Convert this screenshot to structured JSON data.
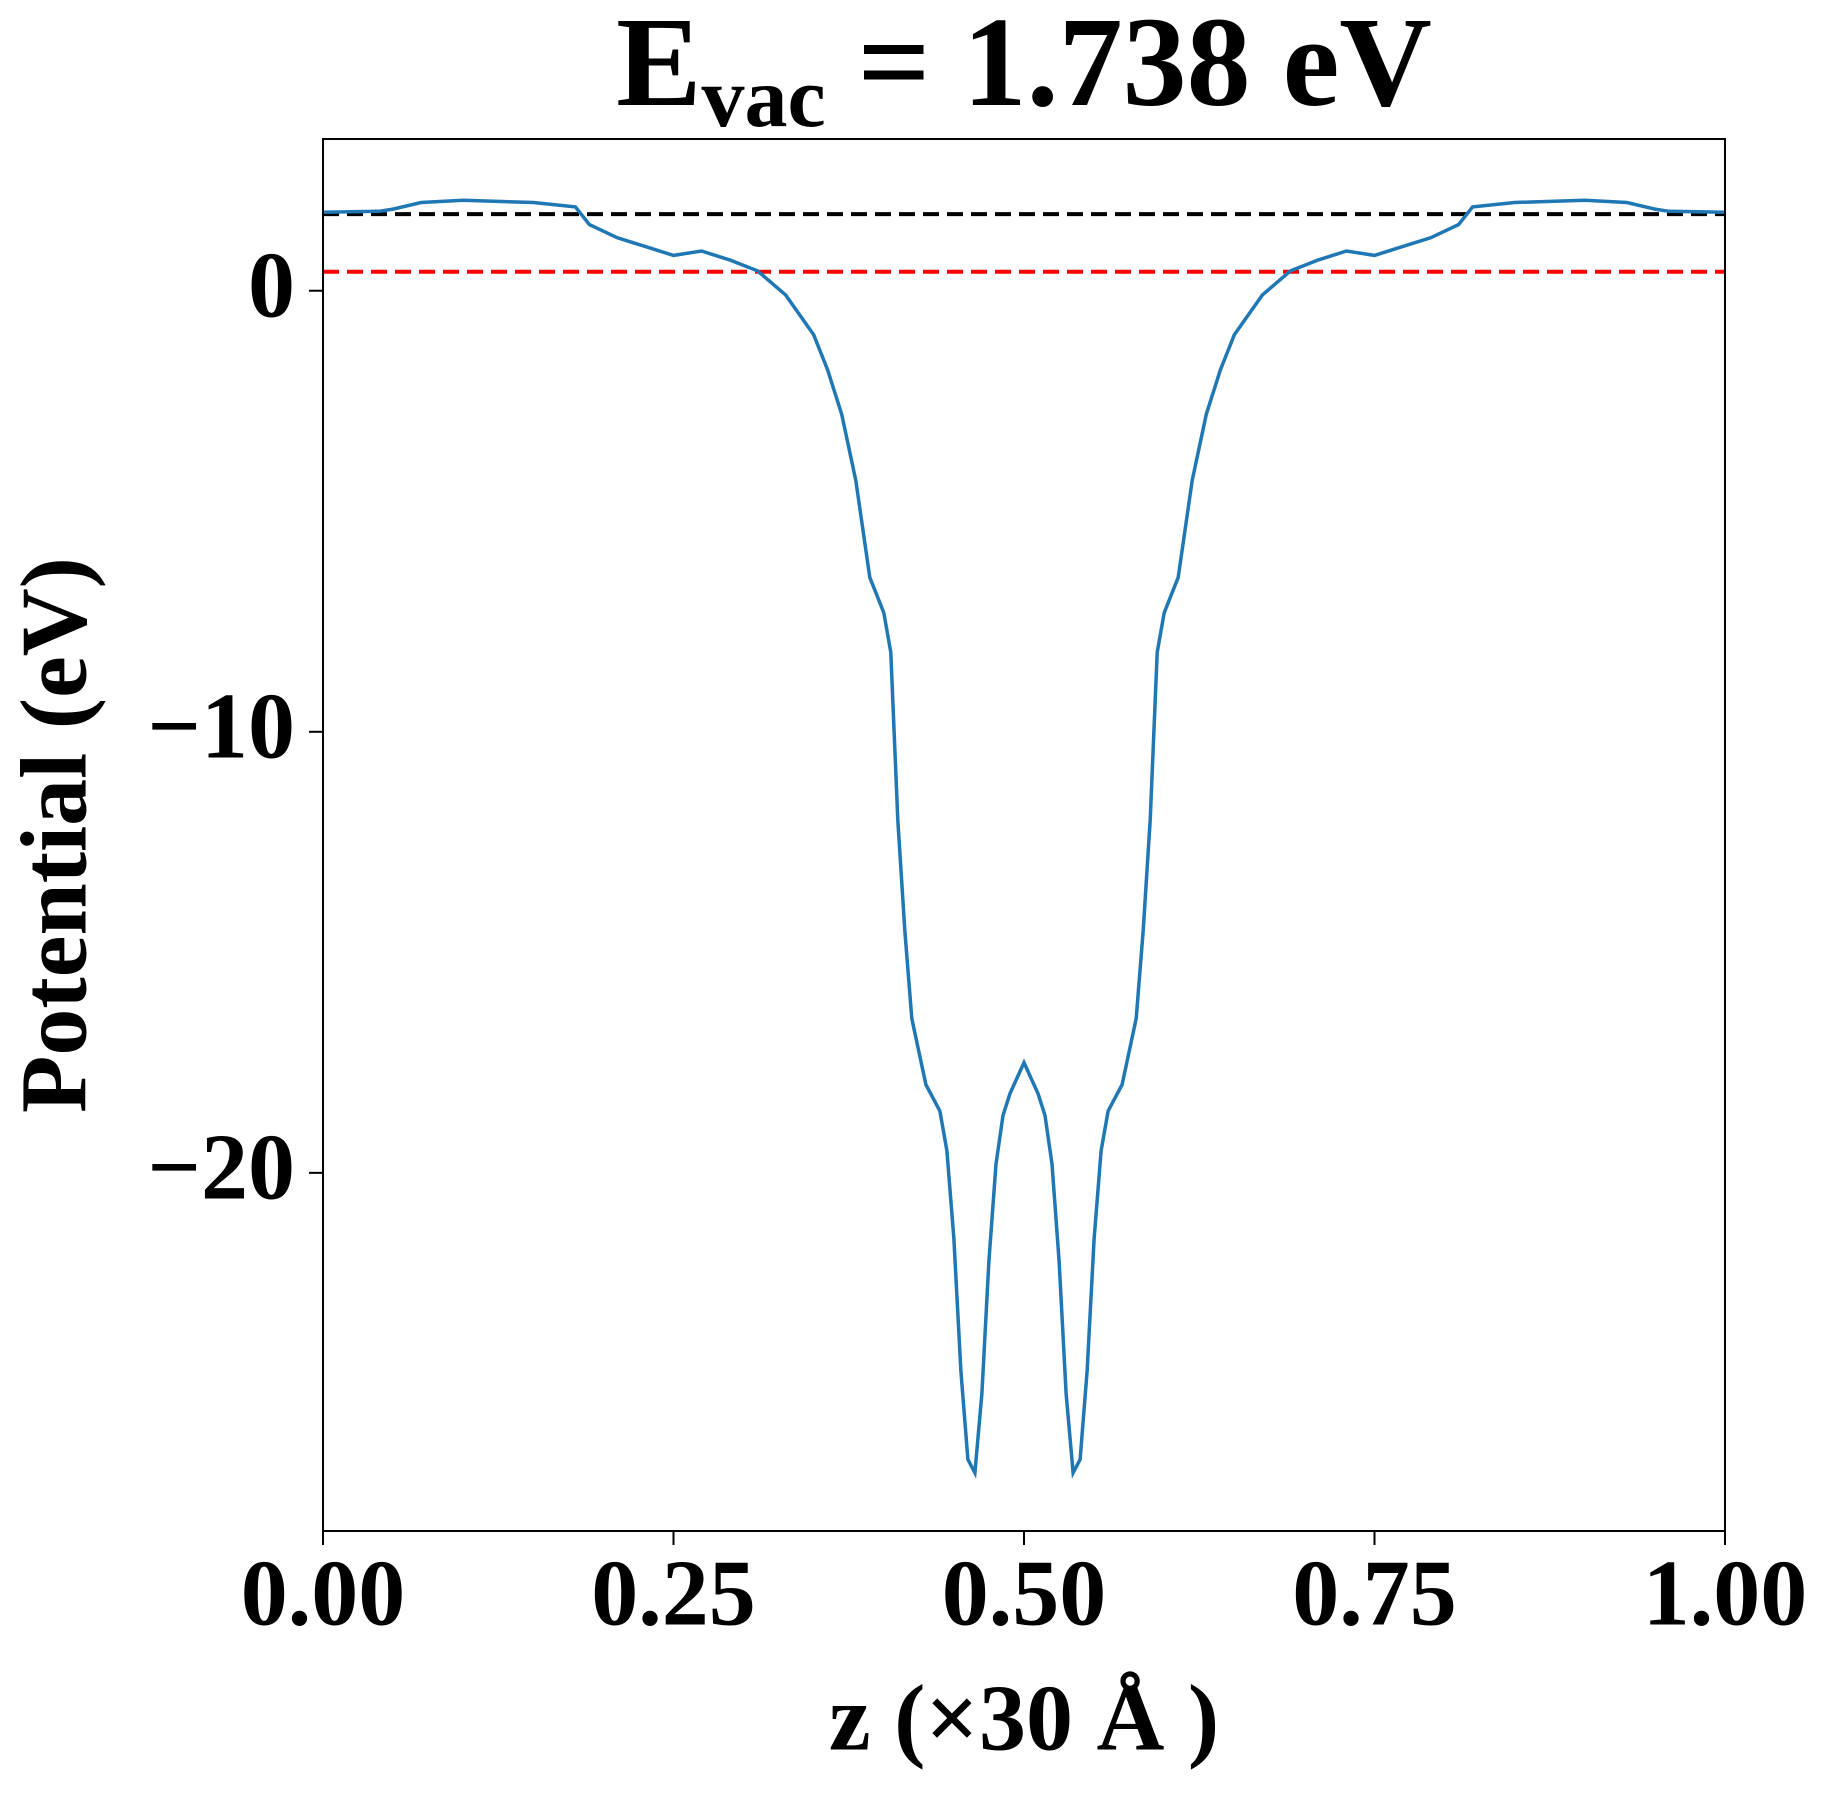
{
  "chart_data": {
    "type": "line",
    "title": [
      "E",
      "vac",
      " = 1.738 eV"
    ],
    "xlabel": "z (×30 Å )",
    "ylabel": "Potential (eV)",
    "xlim": [
      0,
      1
    ],
    "ylim": [
      -28.12,
      3.44
    ],
    "xticks": [
      {
        "value": 0,
        "label": "0.00"
      },
      {
        "value": 0.25,
        "label": "0.25"
      },
      {
        "value": 0.5,
        "label": "0.50"
      },
      {
        "value": 0.75,
        "label": "0.75"
      },
      {
        "value": 1,
        "label": "1.00"
      }
    ],
    "yticks": [
      {
        "value": -20,
        "label": "−20"
      },
      {
        "value": -10,
        "label": "−10"
      },
      0
    ],
    "hlines": [
      {
        "value": 1.738,
        "color": "#000000"
      },
      {
        "value": 0.43,
        "color": "#ff0000"
      }
    ],
    "series": [
      {
        "color": "#1f77b4",
        "x": [
          0,
          0.04,
          0.05,
          0.07,
          0.1,
          0.15,
          0.18,
          0.19,
          0.21,
          0.23,
          0.25,
          0.27,
          0.29,
          0.31,
          0.33,
          0.35,
          0.36,
          0.37,
          0.38,
          0.39,
          0.4,
          0.405,
          0.41,
          0.415,
          0.42,
          0.43,
          0.44,
          0.445,
          0.45,
          0.455,
          0.46,
          0.465,
          0.47,
          0.475,
          0.48,
          0.485,
          0.49,
          0.5,
          0.51,
          0.515,
          0.52,
          0.525,
          0.53,
          0.535,
          0.54,
          0.545,
          0.55,
          0.555,
          0.56,
          0.57,
          0.58,
          0.585,
          0.59,
          0.595,
          0.6,
          0.61,
          0.62,
          0.63,
          0.64,
          0.65,
          0.67,
          0.69,
          0.71,
          0.73,
          0.75,
          0.77,
          0.79,
          0.81,
          0.82,
          0.85,
          0.9,
          0.93,
          0.95,
          0.96,
          1.0
        ],
        "values": [
          1.78,
          1.8,
          1.85,
          2.0,
          2.05,
          2.0,
          1.9,
          1.5,
          1.2,
          1.0,
          0.8,
          0.9,
          0.7,
          0.45,
          -0.1,
          -1.0,
          -1.8,
          -2.8,
          -4.3,
          -6.5,
          -7.3,
          -8.2,
          -12,
          -14.5,
          -16.5,
          -18,
          -18.6,
          -19.5,
          -21.5,
          -24.5,
          -26.5,
          -26.8,
          -25,
          -22,
          -19.8,
          -18.7,
          -18.2,
          -17.5,
          -18.2,
          -18.7,
          -19.8,
          -22,
          -25,
          -26.8,
          -26.5,
          -24.5,
          -21.5,
          -19.5,
          -18.6,
          -18,
          -16.5,
          -14.5,
          -12,
          -8.2,
          -7.3,
          -6.5,
          -4.3,
          -2.8,
          -1.8,
          -1.0,
          -0.1,
          0.45,
          0.7,
          0.9,
          0.8,
          1.0,
          1.2,
          1.5,
          1.9,
          2.0,
          2.05,
          2.0,
          1.85,
          1.8,
          1.78
        ]
      }
    ]
  }
}
